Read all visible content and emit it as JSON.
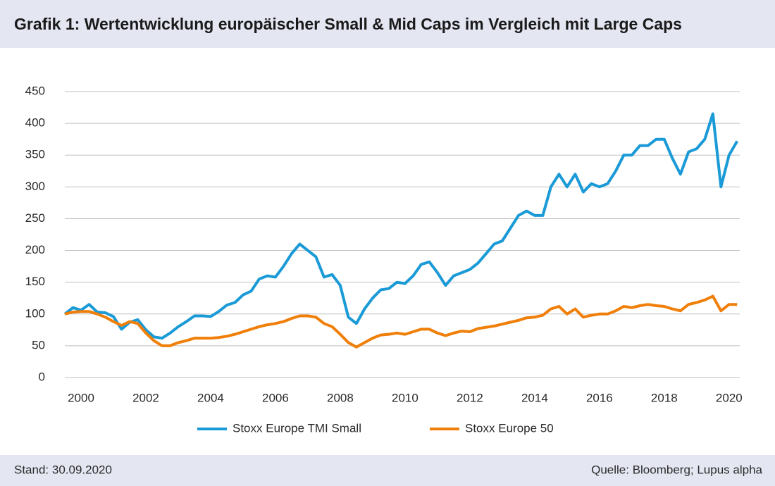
{
  "chart_data": {
    "type": "line",
    "title": "Grafik 1: Wertentwicklung europäischer Small & Mid Caps im Vergleich mit Large Caps",
    "note_left": "Stand: 30.09.2020",
    "note_right": "Quelle: Bloomberg; Lupus alpha",
    "x": [
      2000,
      2000.25,
      2000.5,
      2000.75,
      2001,
      2001.25,
      2001.5,
      2001.75,
      2002,
      2002.25,
      2002.5,
      2002.75,
      2003,
      2003.25,
      2003.5,
      2003.75,
      2004,
      2004.25,
      2004.5,
      2004.75,
      2005,
      2005.25,
      2005.5,
      2005.75,
      2006,
      2006.25,
      2006.5,
      2006.75,
      2007,
      2007.25,
      2007.5,
      2007.75,
      2008,
      2008.25,
      2008.5,
      2008.75,
      2009,
      2009.25,
      2009.5,
      2009.75,
      2010,
      2010.25,
      2010.5,
      2010.75,
      2011,
      2011.25,
      2011.5,
      2011.75,
      2012,
      2012.25,
      2012.5,
      2012.75,
      2013,
      2013.25,
      2013.5,
      2013.75,
      2014,
      2014.25,
      2014.5,
      2014.75,
      2015,
      2015.25,
      2015.5,
      2015.75,
      2016,
      2016.25,
      2016.5,
      2016.75,
      2017,
      2017.25,
      2017.5,
      2017.75,
      2018,
      2018.25,
      2018.5,
      2018.75,
      2019,
      2019.25,
      2019.5,
      2019.75,
      2020,
      2020.25,
      2020.5,
      2020.75
    ],
    "series": [
      {
        "name": "Stoxx Europe TMI Small",
        "color": "#1a9ad6",
        "values": [
          100,
          110,
          106,
          115,
          103,
          102,
          96,
          76,
          87,
          91,
          75,
          64,
          62,
          70,
          80,
          88,
          97,
          97,
          96,
          104,
          114,
          118,
          130,
          136,
          155,
          160,
          158,
          175,
          195,
          210,
          200,
          190,
          158,
          162,
          145,
          95,
          85,
          108,
          125,
          138,
          140,
          150,
          148,
          160,
          178,
          182,
          165,
          145,
          160,
          165,
          170,
          180,
          195,
          210,
          215,
          235,
          255,
          262,
          255,
          255,
          300,
          320,
          300,
          320,
          292,
          305,
          300,
          305,
          325,
          350,
          350,
          365,
          365,
          375,
          375,
          345,
          320,
          355,
          360,
          375,
          415,
          300,
          350,
          372
        ]
      },
      {
        "name": "Stoxx Europe 50",
        "color": "#f07f09",
        "values": [
          100,
          103,
          104,
          104,
          100,
          95,
          88,
          82,
          88,
          85,
          70,
          58,
          50,
          50,
          55,
          58,
          62,
          62,
          62,
          63,
          65,
          68,
          72,
          76,
          80,
          83,
          85,
          88,
          93,
          97,
          97,
          95,
          85,
          80,
          68,
          55,
          48,
          55,
          62,
          67,
          68,
          70,
          68,
          72,
          76,
          76,
          70,
          66,
          70,
          73,
          72,
          77,
          79,
          81,
          84,
          87,
          90,
          94,
          95,
          98,
          108,
          112,
          100,
          108,
          95,
          98,
          100,
          100,
          105,
          112,
          110,
          113,
          115,
          113,
          112,
          108,
          105,
          115,
          118,
          122,
          128,
          105,
          115,
          115
        ]
      }
    ],
    "xlim": [
      2000,
      2020.83
    ],
    "xticks": [
      {
        "value": 2000.5,
        "label": "2000"
      },
      {
        "value": 2002.5,
        "label": "2002"
      },
      {
        "value": 2004.5,
        "label": "2004"
      },
      {
        "value": 2006.5,
        "label": "2006"
      },
      {
        "value": 2008.5,
        "label": "2008"
      },
      {
        "value": 2010.5,
        "label": "2010"
      },
      {
        "value": 2012.5,
        "label": "2012"
      },
      {
        "value": 2014.5,
        "label": "2014"
      },
      {
        "value": 2016.5,
        "label": "2016"
      },
      {
        "value": 2018.5,
        "label": "2018"
      },
      {
        "value": 2020.5,
        "label": "2020"
      }
    ],
    "ylim": [
      0,
      450
    ],
    "yticks": [
      0,
      50,
      100,
      150,
      200,
      250,
      300,
      350,
      400,
      450
    ],
    "grid": true,
    "legend": "bottom"
  }
}
